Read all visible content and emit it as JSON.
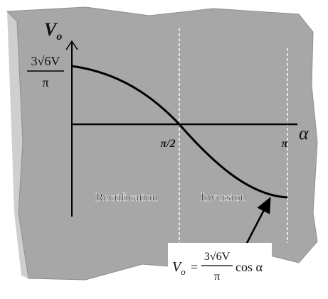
{
  "axis": {
    "y_label": "V",
    "y_label_sub": "o",
    "x_label": "α"
  },
  "y_marker": {
    "numerator": "3√6V",
    "denominator": "π"
  },
  "x_markers": [
    "π/2",
    "π"
  ],
  "regions": [
    "Rectification",
    "Inversion"
  ],
  "formula": {
    "lhs": "V",
    "lhs_sub": "o",
    "equals": "=",
    "numerator": "3√6V",
    "denominator": "π",
    "tail": "cos α"
  }
}
